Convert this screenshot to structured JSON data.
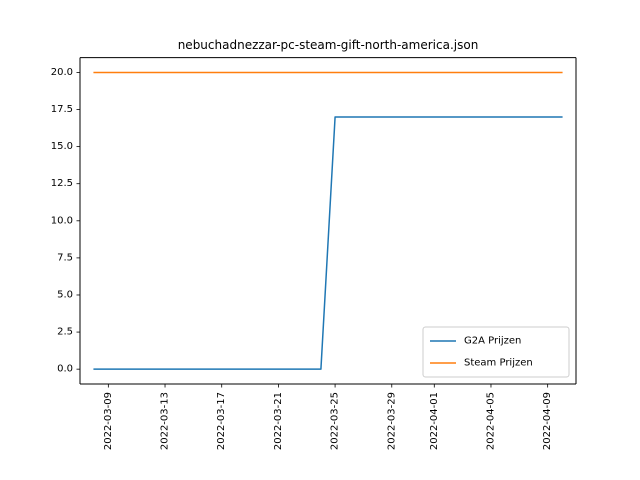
{
  "chart_data": {
    "type": "line",
    "title": "nebuchadnezzar-pc-steam-gift-north-america.json",
    "xlabel": "",
    "ylabel": "",
    "x_is_date": true,
    "xlim": [
      "2022-03-07",
      "2022-04-11"
    ],
    "ylim": [
      -1.0,
      21.0
    ],
    "x_ticks": [
      "2022-03-09",
      "2022-03-13",
      "2022-03-17",
      "2022-03-21",
      "2022-03-25",
      "2022-03-29",
      "2022-04-01",
      "2022-04-05",
      "2022-04-09"
    ],
    "y_ticks": [
      "0.0",
      "2.5",
      "5.0",
      "7.5",
      "10.0",
      "12.5",
      "15.0",
      "17.5",
      "20.0"
    ],
    "grid": false,
    "legend_position": "lower-right",
    "series": [
      {
        "name": "G2A Prijzen",
        "color": "#1f77b4",
        "points": [
          {
            "x": "2022-03-08",
            "y": 0.0
          },
          {
            "x": "2022-03-24",
            "y": 0.0
          },
          {
            "x": "2022-03-25",
            "y": 17.0
          },
          {
            "x": "2022-04-10",
            "y": 17.0
          }
        ]
      },
      {
        "name": "Steam Prijzen",
        "color": "#ff7f0e",
        "points": [
          {
            "x": "2022-03-08",
            "y": 20.0
          },
          {
            "x": "2022-04-10",
            "y": 20.0
          }
        ]
      }
    ]
  }
}
